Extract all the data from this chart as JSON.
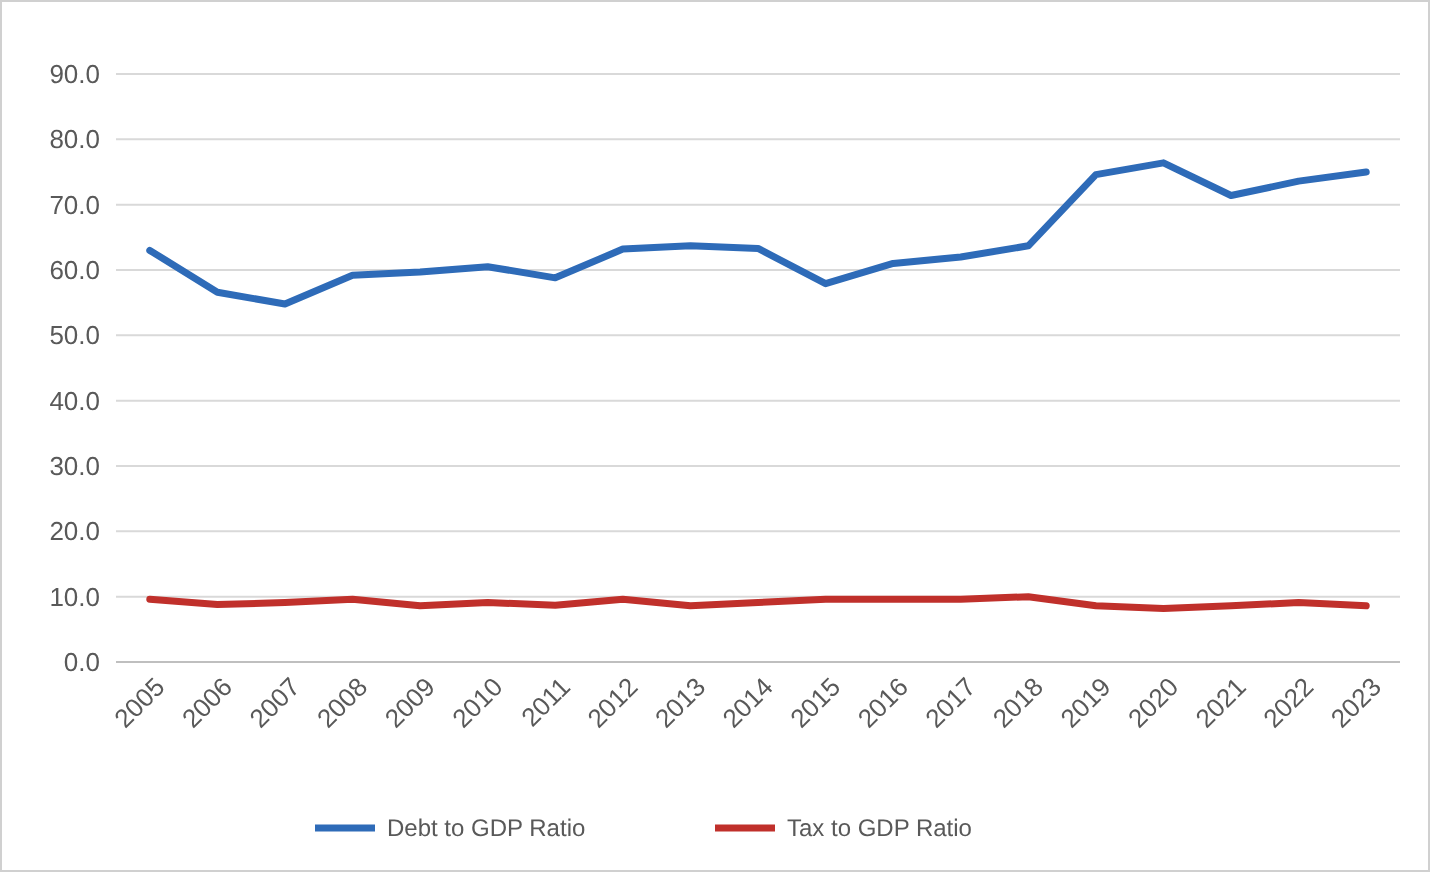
{
  "chart_data": {
    "type": "line",
    "categories": [
      "2005",
      "2006",
      "2007",
      "2008",
      "2009",
      "2010",
      "2011",
      "2012",
      "2013",
      "2014",
      "2015",
      "2016",
      "2017",
      "2018",
      "2019",
      "2020",
      "2021",
      "2022",
      "2023"
    ],
    "series": [
      {
        "name": "Debt to GDP Ratio",
        "color": "#2e6bb8",
        "values": [
          63.0,
          56.6,
          54.8,
          59.2,
          59.7,
          60.5,
          58.8,
          63.2,
          63.7,
          63.3,
          57.9,
          61.0,
          62.0,
          63.7,
          74.6,
          76.4,
          71.4,
          73.6,
          75.0
        ]
      },
      {
        "name": "Tax to GDP Ratio",
        "color": "#c0302b",
        "values": [
          9.6,
          8.8,
          9.1,
          9.6,
          8.6,
          9.1,
          8.7,
          9.6,
          8.6,
          9.1,
          9.6,
          9.6,
          9.6,
          10.0,
          8.6,
          8.2,
          8.6,
          9.1,
          8.6
        ]
      }
    ],
    "ylim": [
      0,
      90
    ],
    "yticks": [
      {
        "value": 0,
        "label": "0.0"
      },
      {
        "value": 10,
        "label": "10.0"
      },
      {
        "value": 20,
        "label": "20.0"
      },
      {
        "value": 30,
        "label": "30.0"
      },
      {
        "value": 40,
        "label": "40.0"
      },
      {
        "value": 50,
        "label": "50.0"
      },
      {
        "value": 60,
        "label": "60.0"
      },
      {
        "value": 70,
        "label": "70.0"
      },
      {
        "value": 80,
        "label": "80.0"
      },
      {
        "value": 90,
        "label": "90.0"
      }
    ],
    "grid": "y",
    "legend": "bottom",
    "marker": "none",
    "line_style": "solid"
  }
}
